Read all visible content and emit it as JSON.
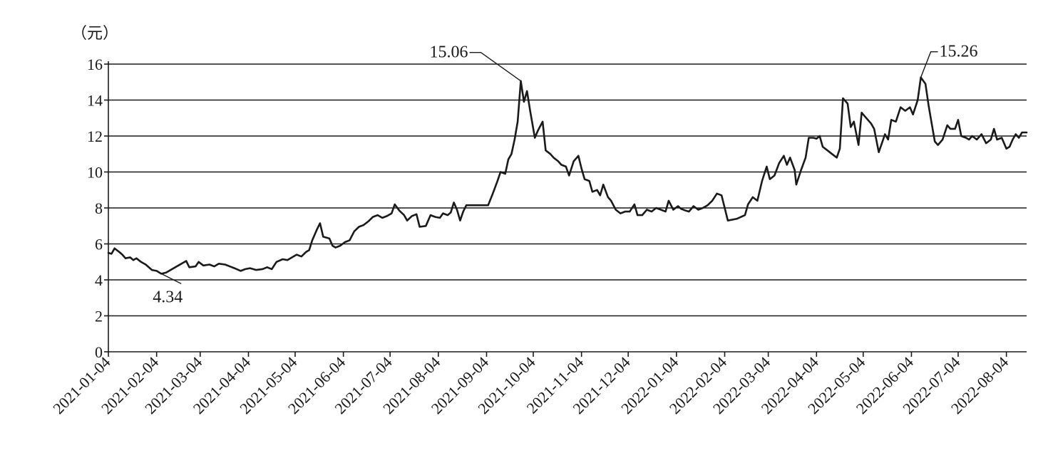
{
  "chart_data": {
    "type": "line",
    "ylabel": "（元）",
    "ylim": [
      0,
      16
    ],
    "y_ticks": [
      "0",
      "2",
      "4",
      "6",
      "8",
      "10",
      "12",
      "14",
      "16"
    ],
    "grid": true,
    "x_ticks": [
      "2021-01-04",
      "2021-02-04",
      "2021-03-04",
      "2021-04-04",
      "2021-05-04",
      "2021-06-04",
      "2021-07-04",
      "2021-08-04",
      "2021-09-04",
      "2021-10-04",
      "2021-11-04",
      "2021-12-04",
      "2022-01-04",
      "2022-02-04",
      "2022-03-04",
      "2022-04-04",
      "2022-05-04",
      "2022-06-04",
      "2022-07-04",
      "2022-08-04"
    ],
    "xlim": [
      "2021-01-04",
      "2022-08-17"
    ],
    "line_color": "#1a1a1a",
    "series": [
      {
        "points": [
          [
            "2021-01-04",
            5.5
          ],
          [
            "2021-01-06",
            5.45
          ],
          [
            "2021-01-08",
            5.75
          ],
          [
            "2021-01-11",
            5.55
          ],
          [
            "2021-01-13",
            5.4
          ],
          [
            "2021-01-15",
            5.2
          ],
          [
            "2021-01-18",
            5.25
          ],
          [
            "2021-01-20",
            5.1
          ],
          [
            "2021-01-22",
            5.2
          ],
          [
            "2021-01-25",
            5.0
          ],
          [
            "2021-01-28",
            4.85
          ],
          [
            "2021-02-01",
            4.55
          ],
          [
            "2021-02-04",
            4.5
          ],
          [
            "2021-02-07",
            4.34
          ],
          [
            "2021-02-10",
            4.4
          ],
          [
            "2021-02-16",
            4.7
          ],
          [
            "2021-02-20",
            4.9
          ],
          [
            "2021-02-23",
            5.05
          ],
          [
            "2021-02-25",
            4.7
          ],
          [
            "2021-03-01",
            4.75
          ],
          [
            "2021-03-03",
            5.0
          ],
          [
            "2021-03-06",
            4.8
          ],
          [
            "2021-03-10",
            4.85
          ],
          [
            "2021-03-13",
            4.75
          ],
          [
            "2021-03-16",
            4.9
          ],
          [
            "2021-03-20",
            4.85
          ],
          [
            "2021-03-23",
            4.75
          ],
          [
            "2021-03-26",
            4.65
          ],
          [
            "2021-03-30",
            4.5
          ],
          [
            "2021-04-02",
            4.6
          ],
          [
            "2021-04-05",
            4.65
          ],
          [
            "2021-04-09",
            4.55
          ],
          [
            "2021-04-13",
            4.6
          ],
          [
            "2021-04-16",
            4.7
          ],
          [
            "2021-04-19",
            4.6
          ],
          [
            "2021-04-22",
            5.0
          ],
          [
            "2021-04-26",
            5.15
          ],
          [
            "2021-04-29",
            5.1
          ],
          [
            "2021-05-02",
            5.25
          ],
          [
            "2021-05-05",
            5.4
          ],
          [
            "2021-05-08",
            5.3
          ],
          [
            "2021-05-11",
            5.55
          ],
          [
            "2021-05-13",
            5.65
          ],
          [
            "2021-05-15",
            6.2
          ],
          [
            "2021-05-18",
            6.8
          ],
          [
            "2021-05-20",
            7.15
          ],
          [
            "2021-05-22",
            6.4
          ],
          [
            "2021-05-26",
            6.3
          ],
          [
            "2021-05-28",
            5.9
          ],
          [
            "2021-05-30",
            5.8
          ],
          [
            "2021-06-02",
            5.9
          ],
          [
            "2021-06-05",
            6.1
          ],
          [
            "2021-06-08",
            6.2
          ],
          [
            "2021-06-11",
            6.7
          ],
          [
            "2021-06-14",
            6.95
          ],
          [
            "2021-06-17",
            7.05
          ],
          [
            "2021-06-20",
            7.25
          ],
          [
            "2021-06-23",
            7.5
          ],
          [
            "2021-06-26",
            7.6
          ],
          [
            "2021-06-29",
            7.45
          ],
          [
            "2021-07-02",
            7.55
          ],
          [
            "2021-07-05",
            7.7
          ],
          [
            "2021-07-07",
            8.2
          ],
          [
            "2021-07-10",
            7.85
          ],
          [
            "2021-07-13",
            7.6
          ],
          [
            "2021-07-15",
            7.3
          ],
          [
            "2021-07-18",
            7.55
          ],
          [
            "2021-07-21",
            7.65
          ],
          [
            "2021-07-23",
            6.95
          ],
          [
            "2021-07-27",
            7.0
          ],
          [
            "2021-07-30",
            7.6
          ],
          [
            "2021-08-02",
            7.5
          ],
          [
            "2021-08-05",
            7.45
          ],
          [
            "2021-08-07",
            7.7
          ],
          [
            "2021-08-10",
            7.6
          ],
          [
            "2021-08-12",
            7.75
          ],
          [
            "2021-08-14",
            8.3
          ],
          [
            "2021-08-16",
            7.9
          ],
          [
            "2021-08-18",
            7.3
          ],
          [
            "2021-08-20",
            7.8
          ],
          [
            "2021-08-22",
            8.15
          ],
          [
            "2021-08-25",
            8.15
          ],
          [
            "2021-08-28",
            8.15
          ],
          [
            "2021-08-31",
            8.15
          ],
          [
            "2021-09-05",
            8.15
          ],
          [
            "2021-09-08",
            8.8
          ],
          [
            "2021-09-11",
            9.5
          ],
          [
            "2021-09-13",
            10.0
          ],
          [
            "2021-09-16",
            9.9
          ],
          [
            "2021-09-18",
            10.7
          ],
          [
            "2021-09-20",
            11.0
          ],
          [
            "2021-09-22",
            11.8
          ],
          [
            "2021-09-24",
            12.8
          ],
          [
            "2021-09-26",
            15.06
          ],
          [
            "2021-09-28",
            13.9
          ],
          [
            "2021-09-30",
            14.5
          ],
          [
            "2021-10-02",
            13.4
          ],
          [
            "2021-10-05",
            11.9
          ],
          [
            "2021-10-07",
            12.3
          ],
          [
            "2021-10-10",
            12.8
          ],
          [
            "2021-10-12",
            11.2
          ],
          [
            "2021-10-15",
            11.0
          ],
          [
            "2021-10-17",
            10.8
          ],
          [
            "2021-10-20",
            10.6
          ],
          [
            "2021-10-22",
            10.4
          ],
          [
            "2021-10-25",
            10.3
          ],
          [
            "2021-10-27",
            9.8
          ],
          [
            "2021-10-30",
            10.6
          ],
          [
            "2021-11-02",
            10.9
          ],
          [
            "2021-11-04",
            10.2
          ],
          [
            "2021-11-06",
            9.6
          ],
          [
            "2021-11-09",
            9.5
          ],
          [
            "2021-11-11",
            8.9
          ],
          [
            "2021-11-14",
            9.0
          ],
          [
            "2021-11-16",
            8.7
          ],
          [
            "2021-11-18",
            9.3
          ],
          [
            "2021-11-21",
            8.6
          ],
          [
            "2021-11-23",
            8.4
          ],
          [
            "2021-11-26",
            7.9
          ],
          [
            "2021-11-29",
            7.7
          ],
          [
            "2021-12-02",
            7.8
          ],
          [
            "2021-12-05",
            7.8
          ],
          [
            "2021-12-08",
            8.2
          ],
          [
            "2021-12-10",
            7.6
          ],
          [
            "2021-12-13",
            7.6
          ],
          [
            "2021-12-16",
            7.9
          ],
          [
            "2021-12-19",
            7.8
          ],
          [
            "2021-12-22",
            8.0
          ],
          [
            "2021-12-25",
            7.9
          ],
          [
            "2021-12-28",
            7.8
          ],
          [
            "2021-12-30",
            8.4
          ],
          [
            "2022-01-02",
            7.9
          ],
          [
            "2022-01-05",
            8.1
          ],
          [
            "2022-01-07",
            7.95
          ],
          [
            "2022-01-10",
            7.85
          ],
          [
            "2022-01-12",
            7.8
          ],
          [
            "2022-01-15",
            8.1
          ],
          [
            "2022-01-18",
            7.9
          ],
          [
            "2022-01-21",
            8.0
          ],
          [
            "2022-01-24",
            8.15
          ],
          [
            "2022-01-27",
            8.4
          ],
          [
            "2022-01-30",
            8.8
          ],
          [
            "2022-02-02",
            8.7
          ],
          [
            "2022-02-04",
            8.0
          ],
          [
            "2022-02-06",
            7.3
          ],
          [
            "2022-02-12",
            7.4
          ],
          [
            "2022-02-17",
            7.6
          ],
          [
            "2022-02-19",
            8.2
          ],
          [
            "2022-02-22",
            8.6
          ],
          [
            "2022-02-25",
            8.4
          ],
          [
            "2022-02-28",
            9.5
          ],
          [
            "2022-03-03",
            10.3
          ],
          [
            "2022-03-05",
            9.6
          ],
          [
            "2022-03-08",
            9.8
          ],
          [
            "2022-03-11",
            10.5
          ],
          [
            "2022-03-14",
            10.9
          ],
          [
            "2022-03-16",
            10.4
          ],
          [
            "2022-03-18",
            10.8
          ],
          [
            "2022-03-21",
            10.1
          ],
          [
            "2022-03-22",
            9.3
          ],
          [
            "2022-03-25",
            10.1
          ],
          [
            "2022-03-28",
            10.8
          ],
          [
            "2022-03-30",
            11.9
          ],
          [
            "2022-04-02",
            11.9
          ],
          [
            "2022-04-04",
            11.85
          ],
          [
            "2022-04-06",
            12.0
          ],
          [
            "2022-04-08",
            11.4
          ],
          [
            "2022-04-11",
            11.2
          ],
          [
            "2022-04-14",
            11.0
          ],
          [
            "2022-04-17",
            10.8
          ],
          [
            "2022-04-19",
            11.3
          ],
          [
            "2022-04-21",
            14.1
          ],
          [
            "2022-04-24",
            13.8
          ],
          [
            "2022-04-26",
            12.5
          ],
          [
            "2022-04-28",
            12.8
          ],
          [
            "2022-05-01",
            11.5
          ],
          [
            "2022-05-03",
            13.3
          ],
          [
            "2022-05-06",
            13.0
          ],
          [
            "2022-05-09",
            12.7
          ],
          [
            "2022-05-11",
            12.4
          ],
          [
            "2022-05-14",
            11.1
          ],
          [
            "2022-05-16",
            11.6
          ],
          [
            "2022-05-18",
            12.1
          ],
          [
            "2022-05-20",
            11.8
          ],
          [
            "2022-05-22",
            12.9
          ],
          [
            "2022-05-25",
            12.8
          ],
          [
            "2022-05-28",
            13.6
          ],
          [
            "2022-05-31",
            13.4
          ],
          [
            "2022-06-03",
            13.6
          ],
          [
            "2022-06-05",
            13.2
          ],
          [
            "2022-06-08",
            14.0
          ],
          [
            "2022-06-10",
            15.26
          ],
          [
            "2022-06-13",
            14.9
          ],
          [
            "2022-06-15",
            13.7
          ],
          [
            "2022-06-17",
            12.7
          ],
          [
            "2022-06-19",
            11.7
          ],
          [
            "2022-06-21",
            11.5
          ],
          [
            "2022-06-24",
            11.8
          ],
          [
            "2022-06-27",
            12.6
          ],
          [
            "2022-06-29",
            12.4
          ],
          [
            "2022-07-02",
            12.4
          ],
          [
            "2022-07-04",
            12.9
          ],
          [
            "2022-07-06",
            12.0
          ],
          [
            "2022-07-09",
            11.9
          ],
          [
            "2022-07-11",
            11.8
          ],
          [
            "2022-07-13",
            12.0
          ],
          [
            "2022-07-16",
            11.8
          ],
          [
            "2022-07-19",
            12.1
          ],
          [
            "2022-07-22",
            11.6
          ],
          [
            "2022-07-25",
            11.8
          ],
          [
            "2022-07-27",
            12.4
          ],
          [
            "2022-07-29",
            11.8
          ],
          [
            "2022-08-01",
            11.9
          ],
          [
            "2022-08-04",
            11.3
          ],
          [
            "2022-08-06",
            11.4
          ],
          [
            "2022-08-08",
            11.8
          ],
          [
            "2022-08-10",
            12.1
          ],
          [
            "2022-08-12",
            11.9
          ],
          [
            "2022-08-14",
            12.2
          ],
          [
            "2022-08-17",
            12.2
          ]
        ]
      }
    ],
    "annotations": [
      {
        "text": "15.06",
        "x": "2021-09-26",
        "y": 15.06
      },
      {
        "text": "15.26",
        "x": "2022-06-10",
        "y": 15.26
      },
      {
        "text": "4.34",
        "x": "2021-02-07",
        "y": 4.34
      }
    ]
  }
}
